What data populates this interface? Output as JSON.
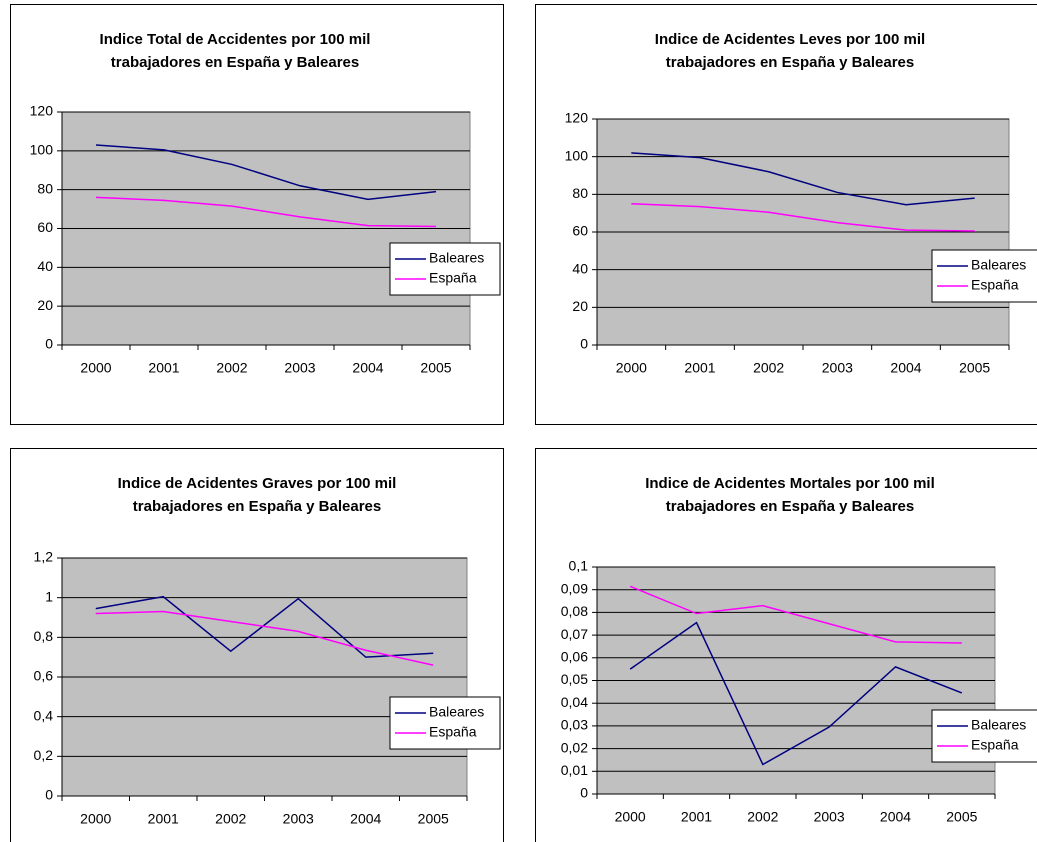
{
  "chart_data": [
    {
      "type": "line",
      "title": [
        "Indice Total de Accidentes por 100 mil",
        "trabajadores en España y Baleares"
      ],
      "categories": [
        "2000",
        "2001",
        "2002",
        "2003",
        "2004",
        "2005"
      ],
      "series": [
        {
          "name": "Baleares",
          "color": "#000080",
          "values": [
            103,
            100.5,
            93,
            82,
            75,
            79
          ]
        },
        {
          "name": "España",
          "color": "#ff00ff",
          "values": [
            76,
            74.5,
            71.5,
            66,
            61.5,
            61
          ]
        }
      ],
      "ylim": [
        0,
        120
      ],
      "yticks": [
        0,
        20,
        40,
        60,
        80,
        100,
        120
      ],
      "grid": true,
      "legend": "right"
    },
    {
      "type": "line",
      "title": [
        "Indice de Acidentes Leves por 100 mil",
        "trabajadores en España y Baleares"
      ],
      "categories": [
        "2000",
        "2001",
        "2002",
        "2003",
        "2004",
        "2005"
      ],
      "series": [
        {
          "name": "Baleares",
          "color": "#000080",
          "values": [
            102,
            99.5,
            92,
            81,
            74.5,
            78
          ]
        },
        {
          "name": "España",
          "color": "#ff00ff",
          "values": [
            75,
            73.5,
            70.5,
            65,
            61,
            60.5
          ]
        }
      ],
      "ylim": [
        0,
        120
      ],
      "yticks": [
        0,
        20,
        40,
        60,
        80,
        100,
        120
      ],
      "grid": true,
      "legend": "right"
    },
    {
      "type": "line",
      "title": [
        "Indice de Acidentes Graves por 100 mil",
        "trabajadores en España y Baleares"
      ],
      "categories": [
        "2000",
        "2001",
        "2002",
        "2003",
        "2004",
        "2005"
      ],
      "series": [
        {
          "name": "Baleares",
          "color": "#000080",
          "values": [
            0.945,
            1.005,
            0.73,
            0.995,
            0.7,
            0.72
          ]
        },
        {
          "name": "España",
          "color": "#ff00ff",
          "values": [
            0.92,
            0.93,
            0.88,
            0.83,
            0.735,
            0.66
          ]
        }
      ],
      "ylim": [
        0,
        1.2
      ],
      "yticks": [
        0,
        {
          "value": 0.2,
          "label": "0,2"
        },
        {
          "value": 0.4,
          "label": "0,4"
        },
        {
          "value": 0.6,
          "label": "0,6"
        },
        {
          "value": 0.8,
          "label": "0,8"
        },
        1,
        {
          "value": 1.2,
          "label": "1,2"
        }
      ],
      "grid": true,
      "legend": "right"
    },
    {
      "type": "line",
      "title": [
        "Indice de Acidentes Mortales por 100 mil",
        "trabajadores en España y Baleares"
      ],
      "categories": [
        "2000",
        "2001",
        "2002",
        "2003",
        "2004",
        "2005"
      ],
      "series": [
        {
          "name": "Baleares",
          "color": "#000080",
          "values": [
            0.055,
            0.0755,
            0.013,
            0.0295,
            0.056,
            0.0445
          ]
        },
        {
          "name": "España",
          "color": "#ff00ff",
          "values": [
            0.0915,
            0.0795,
            0.083,
            0.075,
            0.067,
            0.0665
          ]
        }
      ],
      "ylim": [
        0,
        0.1
      ],
      "yticks": [
        0,
        {
          "value": 0.01,
          "label": "0,01"
        },
        {
          "value": 0.02,
          "label": "0,02"
        },
        {
          "value": 0.03,
          "label": "0,03"
        },
        {
          "value": 0.04,
          "label": "0,04"
        },
        {
          "value": 0.05,
          "label": "0,05"
        },
        {
          "value": 0.06,
          "label": "0,06"
        },
        {
          "value": 0.07,
          "label": "0,07"
        },
        {
          "value": 0.08,
          "label": "0,08"
        },
        {
          "value": 0.09,
          "label": "0,09"
        },
        {
          "value": 0.1,
          "label": "0,1"
        }
      ],
      "grid": true,
      "legend": "right"
    }
  ]
}
